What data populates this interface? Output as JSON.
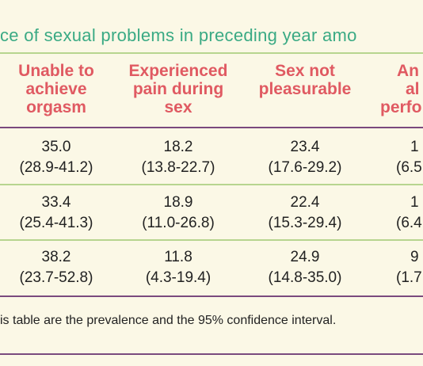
{
  "colors": {
    "background": "#fbf8e6",
    "title_green": "#3aaa84",
    "header_red": "#e05a62",
    "rule_green": "#b7d58f",
    "rule_purple": "#7a4a7e"
  },
  "title": "ce of sexual problems in preceding year amo",
  "headers": [
    {
      "lines": [
        "Unable to",
        "achieve",
        "orgasm"
      ]
    },
    {
      "lines": [
        "Experienced",
        "pain during",
        "sex"
      ]
    },
    {
      "lines": [
        "Sex not",
        "pleasurable"
      ]
    },
    {
      "lines": [
        "An",
        "al",
        "perfo"
      ]
    }
  ],
  "rows": [
    {
      "cells": [
        {
          "value": "35.0",
          "ci": "(28.9-41.2)"
        },
        {
          "value": "18.2",
          "ci": "(13.8-22.7)"
        },
        {
          "value": "23.4",
          "ci": "(17.6-29.2)"
        },
        {
          "value": "1",
          "ci": "(6.5"
        }
      ]
    },
    {
      "cells": [
        {
          "value": "33.4",
          "ci": "(25.4-41.3)"
        },
        {
          "value": "18.9",
          "ci": "(11.0-26.8)"
        },
        {
          "value": "22.4",
          "ci": "(15.3-29.4)"
        },
        {
          "value": "1",
          "ci": "(6.4"
        }
      ]
    },
    {
      "cells": [
        {
          "value": "38.2",
          "ci": "(23.7-52.8)"
        },
        {
          "value": "11.8",
          "ci": "(4.3-19.4)"
        },
        {
          "value": "24.9",
          "ci": "(14.8-35.0)"
        },
        {
          "value": "9",
          "ci": "(1.7"
        }
      ]
    }
  ],
  "note": "is table are the prevalence and the 95% confidence interval."
}
